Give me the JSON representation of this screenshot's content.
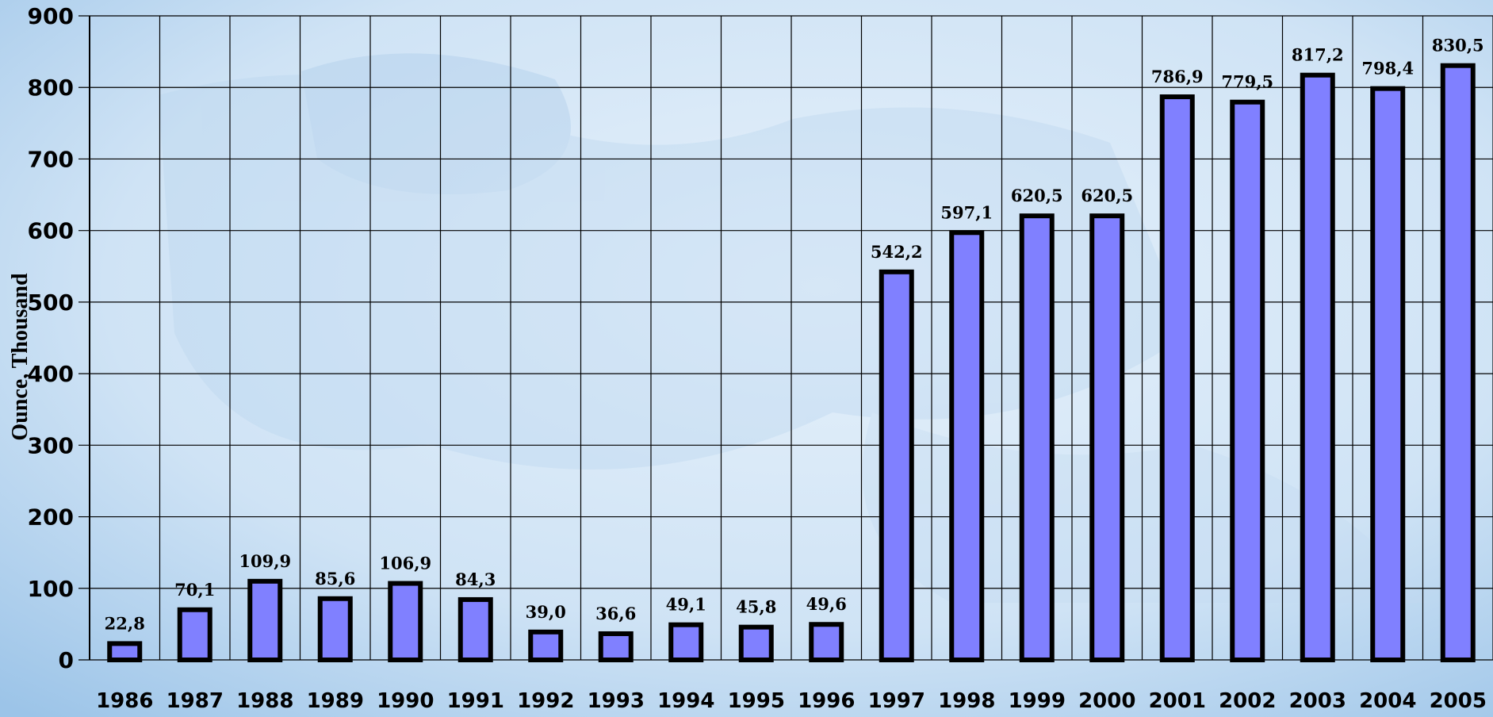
{
  "chart_data": {
    "type": "bar",
    "categories": [
      "1986",
      "1987",
      "1988",
      "1989",
      "1990",
      "1991",
      "1992",
      "1993",
      "1994",
      "1995",
      "1996",
      "1997",
      "1998",
      "1999",
      "2000",
      "2001",
      "2002",
      "2003",
      "2004",
      "2005"
    ],
    "values": [
      22.8,
      70.1,
      109.9,
      85.6,
      106.9,
      84.3,
      39.0,
      36.6,
      49.1,
      45.8,
      49.6,
      542.2,
      597.1,
      620.5,
      620.5,
      786.9,
      779.5,
      817.2,
      798.4,
      830.5
    ],
    "data_labels": [
      "22,8",
      "70,1",
      "109,9",
      "85,6",
      "106,9",
      "84,3",
      "39,0",
      "36,6",
      "49,1",
      "45,8",
      "49,6",
      "542,2",
      "597,1",
      "620,5",
      "620,5",
      "786,9",
      "779,5",
      "817,2",
      "798,4",
      "830,5"
    ],
    "ylabel": "Ounce, Thousand",
    "xlabel": "",
    "title": "",
    "ylim": [
      0,
      900
    ],
    "yticks": [
      "0",
      "100",
      "200",
      "300",
      "400",
      "500",
      "600",
      "700",
      "800",
      "900"
    ],
    "grid": true,
    "bar_color": "#8080ff",
    "bar_outline": "#000000",
    "background": "#cfe3f5"
  }
}
